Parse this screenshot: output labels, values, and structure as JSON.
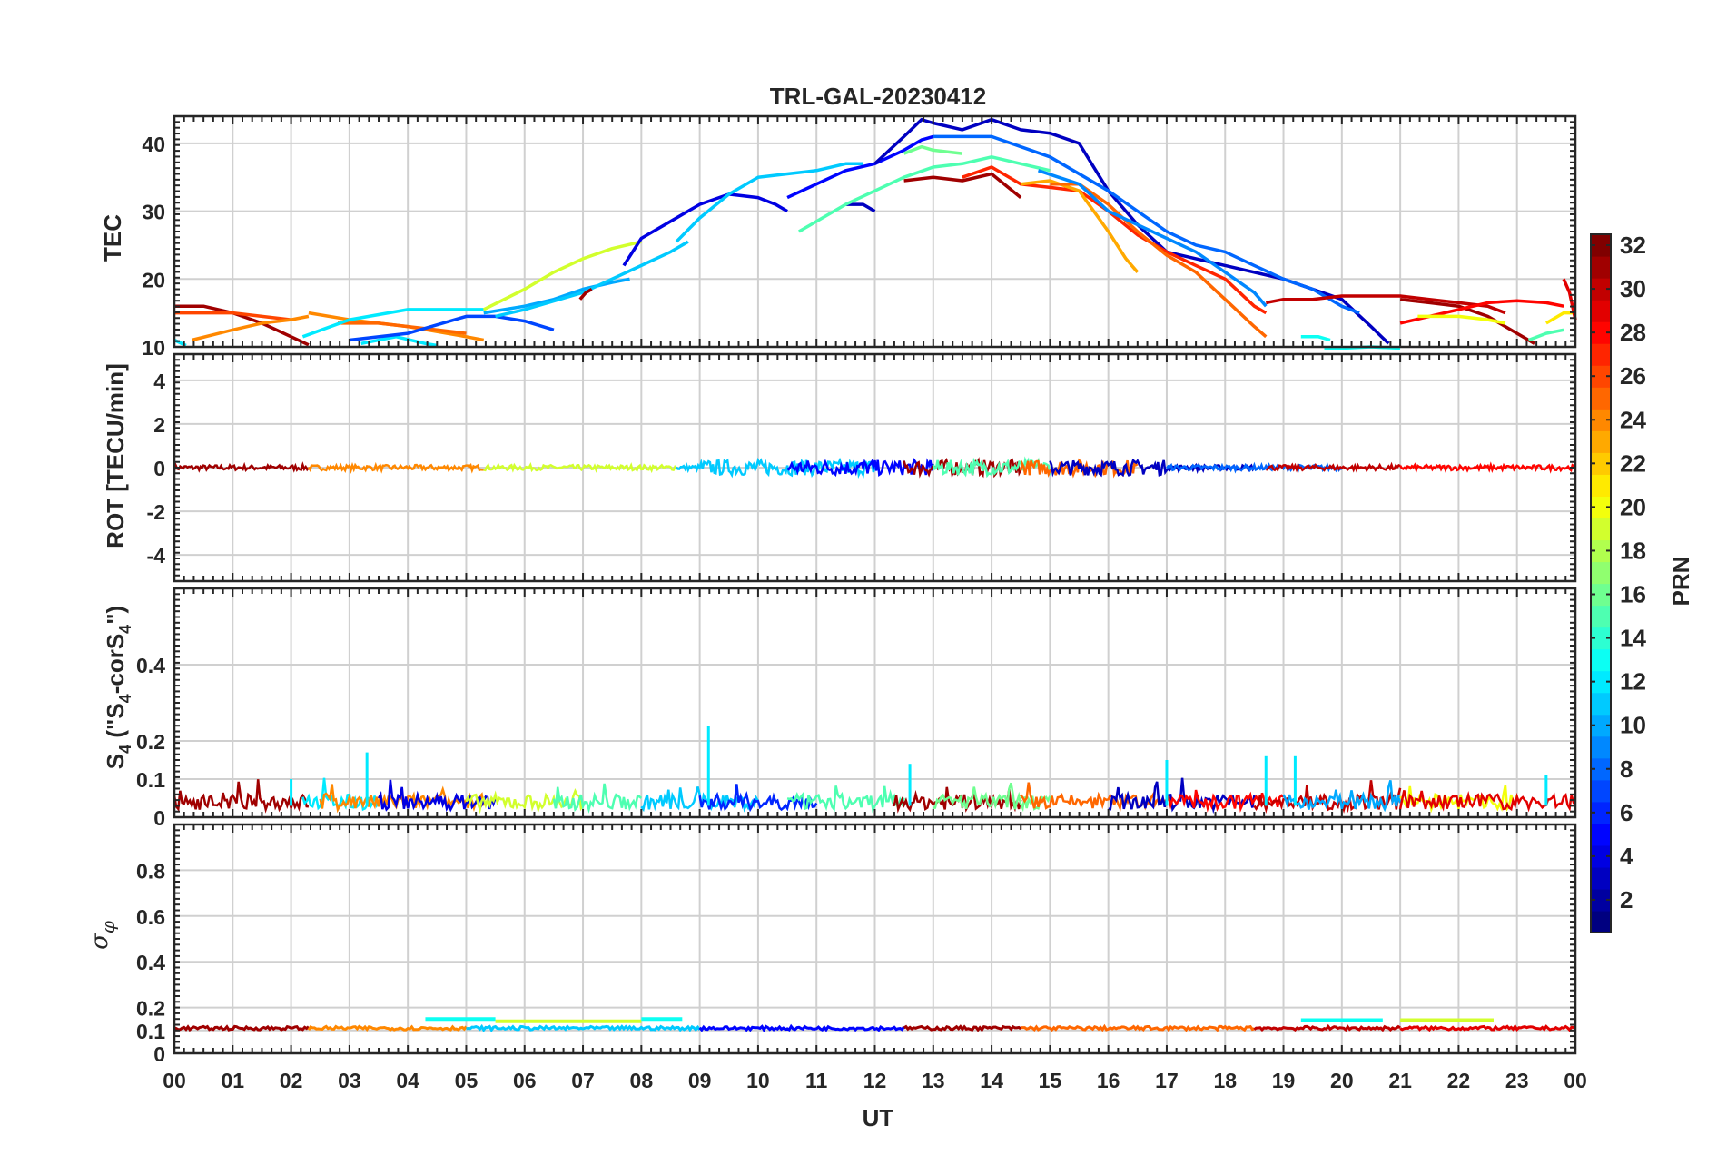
{
  "chart_data": {
    "type": "line",
    "title": "TRL-GAL-20230412",
    "xlabel": "UT",
    "x_ticks": [
      "00",
      "01",
      "02",
      "03",
      "04",
      "05",
      "06",
      "07",
      "08",
      "09",
      "10",
      "11",
      "12",
      "13",
      "14",
      "15",
      "16",
      "17",
      "18",
      "19",
      "20",
      "21",
      "22",
      "23",
      "00"
    ],
    "xlim": [
      0,
      24
    ],
    "grid": true,
    "colorbar": {
      "label": "PRN",
      "range": [
        1,
        32
      ],
      "ticks": [
        2,
        4,
        6,
        8,
        10,
        12,
        14,
        16,
        18,
        20,
        22,
        24,
        26,
        28,
        30,
        32
      ],
      "colormap": "jet"
    },
    "panels": [
      {
        "id": "tec",
        "ylabel": "TEC",
        "ylim": [
          10,
          44
        ],
        "yticks": [
          10,
          20,
          30,
          40
        ],
        "series": [
          {
            "prn": 31,
            "x": [
              0,
              0.5,
              1,
              1.5,
              2.0,
              2.3
            ],
            "y": [
              16,
              16,
              15,
              13.5,
              11.5,
              10.3
            ]
          },
          {
            "prn": 26,
            "x": [
              0,
              0.5,
              1,
              1.5,
              2.0
            ],
            "y": [
              15,
              15,
              15,
              14.5,
              14
            ]
          },
          {
            "prn": 24,
            "x": [
              0.3,
              1.0,
              1.5,
              2.0,
              2.3
            ],
            "y": [
              11,
              12.5,
              13.5,
              14,
              14.5
            ]
          },
          {
            "prn": 24,
            "x": [
              2.3,
              3.0,
              4.0,
              5.0,
              5.3
            ],
            "y": [
              15,
              14,
              13,
              11.5,
              11
            ]
          },
          {
            "prn": 12,
            "x": [
              0,
              0.2
            ],
            "y": [
              11,
              10.2
            ]
          },
          {
            "prn": 25,
            "x": [
              2.8,
              3.5,
              4.0,
              4.5,
              5.0
            ],
            "y": [
              13.5,
              13.5,
              13,
              12.5,
              12
            ]
          },
          {
            "prn": 12,
            "x": [
              2.2,
              3.0,
              4.0,
              5.0,
              5.3
            ],
            "y": [
              11.5,
              14,
              15.5,
              15.5,
              15.5
            ]
          },
          {
            "prn": 12,
            "x": [
              3.2,
              3.8,
              4.3,
              4.5
            ],
            "y": [
              10.5,
              11.5,
              10.5,
              10.2
            ]
          },
          {
            "prn": 7,
            "x": [
              3.0,
              4.0,
              5.0,
              5.5,
              6.0,
              6.5
            ],
            "y": [
              11,
              12,
              14.5,
              14.5,
              13.8,
              12.5
            ]
          },
          {
            "prn": 19,
            "x": [
              5.3,
              6.0,
              6.5,
              7.0,
              7.5,
              8.0
            ],
            "y": [
              15.5,
              18.5,
              21,
              23,
              24.5,
              25.5
            ]
          },
          {
            "prn": 10,
            "x": [
              5.3,
              6.0,
              6.5,
              7.0,
              7.5,
              7.8
            ],
            "y": [
              15,
              16,
              17,
              18.5,
              19.5,
              20
            ]
          },
          {
            "prn": 11,
            "x": [
              5.5,
              6.0,
              7.0,
              8.0,
              8.5,
              8.8
            ],
            "y": [
              14.5,
              15.5,
              18,
              22,
              24,
              25.5
            ]
          },
          {
            "prn": 31,
            "x": [
              6.95,
              7.05,
              7.15
            ],
            "y": [
              17,
              18,
              18.5
            ]
          },
          {
            "prn": 4,
            "x": [
              7.7,
              8.0,
              8.5,
              9.0,
              9.5,
              10.0,
              10.3,
              10.5
            ],
            "y": [
              22,
              26,
              28.5,
              31,
              32.5,
              32,
              31,
              30
            ]
          },
          {
            "prn": 11,
            "x": [
              8.6,
              9.0,
              9.5,
              10.0,
              10.5,
              11.0,
              11.5,
              11.8
            ],
            "y": [
              25.5,
              29,
              32.5,
              35,
              35.5,
              36,
              37,
              37
            ]
          },
          {
            "prn": 5,
            "x": [
              10.5,
              11.0,
              11.5,
              12.0,
              12.5,
              12.8,
              13.0
            ],
            "y": [
              32,
              34,
              36,
              37,
              39,
              40.5,
              41
            ]
          },
          {
            "prn": 3,
            "x": [
              11.5,
              11.8,
              12.0
            ],
            "y": [
              31,
              31,
              30
            ]
          },
          {
            "prn": 3,
            "x": [
              12.0,
              12.5,
              12.8,
              13.0,
              13.5,
              14.0,
              14.5,
              15.0,
              15.5,
              16.0,
              16.5,
              17.0,
              18.0,
              19.0,
              20.0,
              20.5,
              20.8
            ],
            "y": [
              37,
              41,
              43.5,
              43,
              42,
              43.5,
              42,
              41.5,
              40,
              33,
              28,
              24,
              22,
              20,
              17,
              13,
              10.5
            ]
          },
          {
            "prn": 15,
            "x": [
              10.7,
              11.5,
              12.0,
              12.5,
              13.0,
              13.5,
              14.0,
              14.5,
              15.0
            ],
            "y": [
              27,
              31,
              33,
              35,
              36.5,
              37,
              38,
              37,
              36
            ]
          },
          {
            "prn": 16,
            "x": [
              12.5,
              12.8,
              13.0,
              13.5
            ],
            "y": [
              38.5,
              39.5,
              39,
              38.5
            ]
          },
          {
            "prn": 8,
            "x": [
              13.0,
              14.0,
              15.0,
              16.0,
              17.0,
              17.5,
              18.0,
              18.5,
              19.0,
              19.5,
              20.0,
              20.3
            ],
            "y": [
              41,
              41,
              38,
              33,
              27,
              25,
              24,
              22,
              20,
              18.5,
              16,
              15
            ]
          },
          {
            "prn": 31,
            "x": [
              12.5,
              13.0,
              13.5,
              14.0,
              14.5
            ],
            "y": [
              34.5,
              35,
              34.5,
              35.5,
              32
            ]
          },
          {
            "prn": 27,
            "x": [
              13.5,
              14.0,
              14.5,
              15.0,
              15.5,
              16.0,
              16.5,
              17.0,
              17.5,
              18.0,
              18.5,
              18.7
            ],
            "y": [
              35,
              36.5,
              34,
              33.5,
              33,
              30,
              26.5,
              24,
              22,
              20,
              16,
              15
            ]
          },
          {
            "prn": 23,
            "x": [
              14.5,
              15.0,
              15.5,
              16.0,
              16.3,
              16.5
            ],
            "y": [
              34,
              34.5,
              33,
              27,
              23,
              21
            ]
          },
          {
            "prn": 25,
            "x": [
              15.0,
              15.5,
              16.0,
              16.5,
              17.0,
              17.5,
              18.0,
              18.5,
              18.7
            ],
            "y": [
              34,
              34,
              31,
              27,
              23.5,
              21,
              17,
              13,
              11.5
            ]
          },
          {
            "prn": 9,
            "x": [
              14.8,
              15.5,
              16.0,
              17.0,
              17.5,
              18.0,
              18.5,
              18.7
            ],
            "y": [
              36,
              34,
              30,
              26,
              24,
              21,
              18,
              16
            ]
          },
          {
            "prn": 30,
            "x": [
              18.7,
              19.0,
              19.5,
              20.0,
              20.5,
              21.0,
              21.5,
              22.0,
              22.5,
              22.8
            ],
            "y": [
              16.5,
              17,
              17,
              17.5,
              17.5,
              17.5,
              17,
              16.5,
              16,
              15
            ]
          },
          {
            "prn": 31,
            "x": [
              21.0,
              21.5,
              22.0,
              22.5,
              23.0,
              23.3
            ],
            "y": [
              17,
              16.5,
              16,
              14.5,
              12,
              10.5
            ]
          },
          {
            "prn": 28,
            "x": [
              21.0,
              21.5,
              22.0,
              22.5,
              23.0,
              23.5,
              23.8
            ],
            "y": [
              13.5,
              14.5,
              15.5,
              16.5,
              16.8,
              16.5,
              16
            ]
          },
          {
            "prn": 20,
            "x": [
              21.3,
              22.0,
              22.5,
              22.8
            ],
            "y": [
              14.5,
              14.5,
              14,
              13.5
            ]
          },
          {
            "prn": 13,
            "x": [
              19.3,
              19.6,
              19.8
            ],
            "y": [
              11.5,
              11.5,
              11
            ]
          },
          {
            "prn": 13,
            "x": [
              19.7,
              20.0,
              20.5,
              21.0
            ],
            "y": [
              9.8,
              9.8,
              10,
              9.8
            ]
          },
          {
            "prn": 21,
            "x": [
              23.5,
              23.8,
              24.0
            ],
            "y": [
              13.5,
              15,
              15
            ]
          },
          {
            "prn": 15,
            "x": [
              23.2,
              23.5,
              23.8
            ],
            "y": [
              11,
              12,
              12.5
            ]
          },
          {
            "prn": 29,
            "x": [
              23.8,
              23.9,
              24.0
            ],
            "y": [
              20,
              18,
              14
            ]
          }
        ]
      },
      {
        "id": "rot",
        "ylabel": "ROT [TECU/min]",
        "ylim": [
          -5.2,
          5.2
        ],
        "yticks": [
          -4,
          -2,
          0,
          2,
          4
        ],
        "series_note": "near-zero fluctuations for all PRNs, |ROT| < 0.8"
      },
      {
        "id": "s4",
        "ylabel": "S4 (\"S4-corS4\")",
        "ylabel_parts": {
          "main": "S",
          "sub": "4",
          "open": " (\"S",
          "mid": "-corS",
          "close": "\")"
        },
        "ylim": [
          0,
          0.6
        ],
        "yticks": [
          0,
          0.1,
          0.2,
          0.4
        ],
        "typical_range": [
          0.02,
          0.1
        ],
        "spikes": [
          {
            "x": 9.15,
            "y": 0.24
          },
          {
            "x": 3.3,
            "y": 0.17
          },
          {
            "x": 18.7,
            "y": 0.16
          },
          {
            "x": 19.2,
            "y": 0.16
          },
          {
            "x": 2.0,
            "y": 0.1
          },
          {
            "x": 12.6,
            "y": 0.14
          },
          {
            "x": 17.0,
            "y": 0.15
          },
          {
            "x": 23.5,
            "y": 0.11
          }
        ]
      },
      {
        "id": "sigma_phi",
        "ylabel": "σ φ",
        "ylabel_parts": {
          "main": "σ",
          "sub": "φ"
        },
        "ylim": [
          0,
          1
        ],
        "yticks": [
          0,
          0.1,
          0.2,
          0.4,
          0.6,
          0.8
        ],
        "baseline": 0.11,
        "segments": [
          {
            "prn": 13,
            "x": [
              4.3,
              5.5
            ],
            "level": 0.15
          },
          {
            "prn": 19,
            "x": [
              5.5,
              8.0
            ],
            "level": 0.14
          },
          {
            "prn": 13,
            "x": [
              8.0,
              8.7
            ],
            "level": 0.15
          },
          {
            "prn": 13,
            "x": [
              19.3,
              20.7
            ],
            "level": 0.145
          },
          {
            "prn": 19,
            "x": [
              21.0,
              22.6
            ],
            "level": 0.145
          }
        ]
      }
    ]
  }
}
